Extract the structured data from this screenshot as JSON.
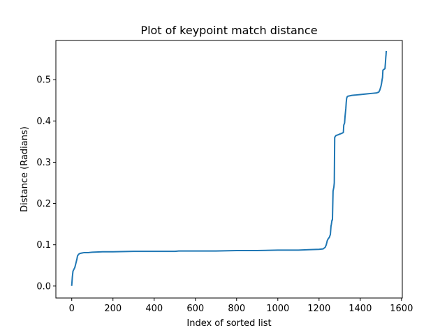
{
  "chart_data": {
    "type": "line",
    "title": "Plot of keypoint match distance",
    "xlabel": "Index of sorted list",
    "ylabel": "Distance (Radians)",
    "xlim": [
      -77,
      1604
    ],
    "ylim": [
      -0.029,
      0.595
    ],
    "xticks": [
      0,
      200,
      400,
      600,
      800,
      1000,
      1200,
      1400,
      1600
    ],
    "xtick_labels": [
      "0",
      "200",
      "400",
      "600",
      "800",
      "1000",
      "1200",
      "1400",
      "1600"
    ],
    "yticks": [
      0.0,
      0.1,
      0.2,
      0.3,
      0.4,
      0.5
    ],
    "ytick_labels": [
      "0.0",
      "0.1",
      "0.2",
      "0.3",
      "0.4",
      "0.5"
    ],
    "grid": false,
    "series": [
      {
        "color": "#1f77b4",
        "x": [
          0,
          3,
          6,
          10,
          15,
          20,
          25,
          28,
          32,
          36,
          40,
          50,
          60,
          80,
          100,
          150,
          200,
          300,
          400,
          500,
          520,
          600,
          700,
          800,
          900,
          1000,
          1100,
          1150,
          1200,
          1220,
          1230,
          1235,
          1240,
          1245,
          1250,
          1255,
          1258,
          1260,
          1263,
          1265,
          1268,
          1270,
          1272,
          1274,
          1276,
          1278,
          1280,
          1281,
          1283,
          1290,
          1300,
          1310,
          1318,
          1320,
          1324,
          1326,
          1328,
          1330,
          1332,
          1334,
          1336,
          1338,
          1340,
          1350,
          1360,
          1380,
          1400,
          1420,
          1440,
          1460,
          1480,
          1490,
          1495,
          1498,
          1500,
          1503,
          1506,
          1508,
          1510,
          1512,
          1515,
          1518,
          1520,
          1522,
          1524,
          1525,
          1526
        ],
        "y": [
          0.002,
          0.022,
          0.036,
          0.04,
          0.045,
          0.055,
          0.065,
          0.073,
          0.076,
          0.078,
          0.079,
          0.08,
          0.081,
          0.081,
          0.082,
          0.083,
          0.083,
          0.084,
          0.084,
          0.084,
          0.085,
          0.085,
          0.085,
          0.086,
          0.086,
          0.087,
          0.087,
          0.088,
          0.089,
          0.09,
          0.094,
          0.1,
          0.11,
          0.115,
          0.118,
          0.125,
          0.145,
          0.15,
          0.16,
          0.16,
          0.23,
          0.235,
          0.24,
          0.25,
          0.36,
          0.362,
          0.363,
          0.364,
          0.365,
          0.366,
          0.368,
          0.37,
          0.372,
          0.39,
          0.395,
          0.41,
          0.42,
          0.43,
          0.445,
          0.455,
          0.458,
          0.459,
          0.46,
          0.461,
          0.462,
          0.463,
          0.464,
          0.465,
          0.466,
          0.467,
          0.468,
          0.47,
          0.475,
          0.48,
          0.483,
          0.49,
          0.5,
          0.505,
          0.523,
          0.524,
          0.525,
          0.526,
          0.527,
          0.54,
          0.555,
          0.56,
          0.568
        ]
      }
    ]
  }
}
